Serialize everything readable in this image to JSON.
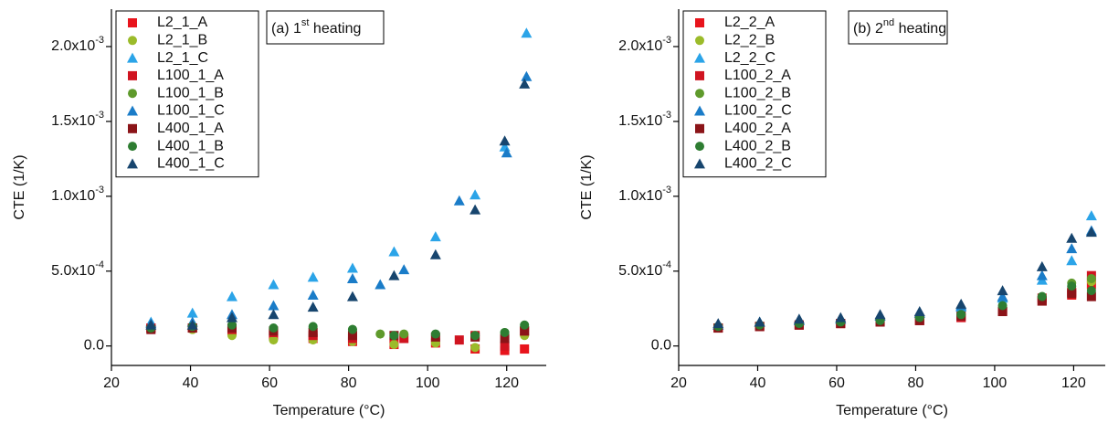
{
  "chart_data": [
    {
      "type": "scatter",
      "annotation": [
        "(a) 1",
        "st",
        " heating"
      ],
      "xlabel": "Temperature (°C)",
      "ylabel": "CTE (1/K)",
      "xlim": [
        20,
        130
      ],
      "ylim": [
        -0.00013,
        0.00225
      ],
      "xticks": [
        20,
        40,
        60,
        80,
        100,
        120
      ],
      "yticks": [
        {
          "value": 0,
          "label": "0.0"
        },
        {
          "value": 0.0005,
          "label": "5.0x10",
          "exponent": "-4"
        },
        {
          "value": 0.001,
          "label": "1.0x10",
          "exponent": "-3"
        },
        {
          "value": 0.0015,
          "label": "1.5x10",
          "exponent": "-3"
        },
        {
          "value": 0.002,
          "label": "2.0x10",
          "exponent": "-3"
        }
      ],
      "series": [
        {
          "name": "L2_1_A",
          "color": "#e8141c",
          "marker": "square",
          "x": [
            30,
            40.5,
            50.5,
            61,
            71,
            81,
            91.5,
            102,
            112,
            119.5,
            124.5
          ],
          "values": [
            0.00012,
            0.00012,
            0.0001,
            7e-05,
            5e-05,
            3e-05,
            1e-05,
            2e-05,
            -2e-05,
            -3e-05,
            -2e-05
          ]
        },
        {
          "name": "L2_1_B",
          "color": "#9bbb2a",
          "marker": "circle",
          "x": [
            30,
            40.5,
            50.5,
            61,
            71,
            81,
            91.5,
            102,
            112,
            119.5,
            124.5
          ],
          "values": [
            0.00012,
            0.00011,
            7e-05,
            4e-05,
            4e-05,
            3e-05,
            1e-05,
            2e-05,
            -1e-05,
            2e-05,
            7e-05
          ]
        },
        {
          "name": "L2_1_C",
          "color": "#2ba4e8",
          "marker": "triangle",
          "x": [
            30,
            40.5,
            50.5,
            61,
            71,
            81,
            91.5,
            102,
            112,
            119.5,
            125
          ],
          "values": [
            0.00016,
            0.00022,
            0.00033,
            0.00041,
            0.00046,
            0.00052,
            0.00063,
            0.00073,
            0.00101,
            0.00133,
            0.00209
          ]
        },
        {
          "name": "L100_1_A",
          "color": "#d01420",
          "marker": "square",
          "x": [
            30,
            40.5,
            50.5,
            61,
            71,
            81,
            94,
            108,
            112,
            119.5,
            124.5
          ],
          "values": [
            0.00012,
            0.00012,
            0.00011,
            9e-05,
            7e-05,
            5e-05,
            5e-05,
            4e-05,
            7e-05,
            0.0,
            0.0001
          ]
        },
        {
          "name": "L100_1_B",
          "color": "#5f9a2c",
          "marker": "circle",
          "x": [
            30,
            40.5,
            50.5,
            61,
            71,
            81,
            88,
            94,
            102,
            112,
            119.5,
            124.5
          ],
          "values": [
            0.00012,
            0.00012,
            0.00012,
            0.00011,
            0.00012,
            0.00011,
            8e-05,
            8e-05,
            7e-05,
            7e-05,
            9e-05,
            0.00013
          ]
        },
        {
          "name": "L100_1_C",
          "color": "#1a7cc8",
          "marker": "triangle",
          "x": [
            30,
            40.5,
            50.5,
            61,
            71,
            81,
            88,
            94,
            108,
            120,
            125
          ],
          "values": [
            0.00015,
            0.00016,
            0.00021,
            0.00027,
            0.00034,
            0.00045,
            0.00041,
            0.00051,
            0.00097,
            0.00129,
            0.0018
          ]
        },
        {
          "name": "L400_1_A",
          "color": "#8b1418",
          "marker": "square",
          "x": [
            30,
            40.5,
            50.5,
            61,
            71,
            81,
            91.5,
            102,
            112,
            119.5,
            124.5
          ],
          "values": [
            0.00011,
            0.00012,
            0.00012,
            0.0001,
            9e-05,
            7e-05,
            7e-05,
            6e-05,
            6e-05,
            5e-05,
            0.0001
          ]
        },
        {
          "name": "L400_1_B",
          "color": "#2e7d32",
          "marker": "circle",
          "x": [
            30,
            40.5,
            50.5,
            61,
            71,
            81,
            91.5,
            102,
            112,
            119.5,
            124.5
          ],
          "values": [
            0.00012,
            0.00013,
            0.00014,
            0.00012,
            0.00013,
            0.00011,
            7e-05,
            8e-05,
            7e-05,
            9e-05,
            0.00014
          ]
        },
        {
          "name": "L400_1_C",
          "color": "#17456e",
          "marker": "triangle",
          "x": [
            30,
            40.5,
            50.5,
            61,
            71,
            81,
            91.5,
            102,
            112,
            119.5,
            124.5
          ],
          "values": [
            0.00014,
            0.00014,
            0.00019,
            0.00021,
            0.00026,
            0.00033,
            0.00047,
            0.00061,
            0.00091,
            0.00137,
            0.00175
          ]
        }
      ]
    },
    {
      "type": "scatter",
      "annotation": [
        "(b) 2",
        "nd",
        " heating"
      ],
      "xlabel": "Temperature (°C)",
      "ylabel": "CTE (1/K)",
      "xlim": [
        20,
        128
      ],
      "ylim": [
        -0.00013,
        0.00225
      ],
      "xticks": [
        20,
        40,
        60,
        80,
        100,
        120
      ],
      "yticks": [
        {
          "value": 0,
          "label": "0.0"
        },
        {
          "value": 0.0005,
          "label": "5.0x10",
          "exponent": "-4"
        },
        {
          "value": 0.001,
          "label": "1.0x10",
          "exponent": "-3"
        },
        {
          "value": 0.0015,
          "label": "1.5x10",
          "exponent": "-3"
        },
        {
          "value": 0.002,
          "label": "2.0x10",
          "exponent": "-3"
        }
      ],
      "series": [
        {
          "name": "L2_2_A",
          "color": "#e8141c",
          "marker": "square",
          "x": [
            30,
            40.5,
            50.5,
            61,
            71,
            81,
            91.5,
            102,
            112,
            119.5,
            124.5
          ],
          "values": [
            0.00012,
            0.00013,
            0.00014,
            0.00015,
            0.00016,
            0.00017,
            0.00019,
            0.00023,
            0.0003,
            0.00034,
            0.00041
          ]
        },
        {
          "name": "L2_2_B",
          "color": "#9bbb2a",
          "marker": "circle",
          "x": [
            30,
            40.5,
            50.5,
            61,
            71,
            81,
            91.5,
            102,
            112,
            119.5,
            124.5
          ],
          "values": [
            0.00012,
            0.00013,
            0.00014,
            0.00015,
            0.00016,
            0.00018,
            0.0002,
            0.00025,
            0.00031,
            0.00038,
            0.00043
          ]
        },
        {
          "name": "L2_2_C",
          "color": "#2ba4e8",
          "marker": "triangle",
          "x": [
            30,
            40.5,
            50.5,
            61,
            71,
            81,
            91.5,
            102,
            112,
            119.5,
            124.5
          ],
          "values": [
            0.00014,
            0.00016,
            0.00017,
            0.00018,
            0.0002,
            0.00022,
            0.00026,
            0.00032,
            0.00044,
            0.00057,
            0.00087
          ]
        },
        {
          "name": "L100_2_A",
          "color": "#d01420",
          "marker": "square",
          "x": [
            30,
            40.5,
            50.5,
            61,
            71,
            81,
            91.5,
            102,
            112,
            119.5,
            124.5
          ],
          "values": [
            0.00012,
            0.00013,
            0.00014,
            0.00015,
            0.00016,
            0.00017,
            0.00019,
            0.00023,
            0.00032,
            0.00036,
            0.00047
          ]
        },
        {
          "name": "L100_2_B",
          "color": "#5f9a2c",
          "marker": "circle",
          "x": [
            30,
            40.5,
            50.5,
            61,
            71,
            81,
            91.5,
            102,
            112,
            119.5,
            124.5
          ],
          "values": [
            0.00013,
            0.00014,
            0.00015,
            0.00016,
            0.00017,
            0.00019,
            0.00021,
            0.00026,
            0.00033,
            0.00042,
            0.00045
          ]
        },
        {
          "name": "L100_2_C",
          "color": "#1a7cc8",
          "marker": "triangle",
          "x": [
            30,
            40.5,
            50.5,
            61,
            71,
            81,
            91.5,
            102,
            112,
            119.5,
            124.5
          ],
          "values": [
            0.00014,
            0.00016,
            0.00017,
            0.00018,
            0.0002,
            0.00022,
            0.00027,
            0.00033,
            0.00047,
            0.00065,
            0.00077
          ]
        },
        {
          "name": "L400_2_A",
          "color": "#8b1418",
          "marker": "square",
          "x": [
            30,
            40.5,
            50.5,
            61,
            71,
            81,
            91.5,
            102,
            112,
            119.5,
            124.5
          ],
          "values": [
            0.00012,
            0.00013,
            0.00014,
            0.00015,
            0.00016,
            0.00017,
            0.0002,
            0.00023,
            0.0003,
            0.00035,
            0.00033
          ]
        },
        {
          "name": "L400_2_B",
          "color": "#2e7d32",
          "marker": "circle",
          "x": [
            30,
            40.5,
            50.5,
            61,
            71,
            81,
            91.5,
            102,
            112,
            119.5,
            124.5
          ],
          "values": [
            0.00013,
            0.00014,
            0.00015,
            0.00016,
            0.00017,
            0.00019,
            0.00021,
            0.00027,
            0.00033,
            0.0004,
            0.00037
          ]
        },
        {
          "name": "L400_2_C",
          "color": "#17456e",
          "marker": "triangle",
          "x": [
            30,
            40.5,
            50.5,
            61,
            71,
            81,
            91.5,
            102,
            112,
            119.5,
            124.5
          ],
          "values": [
            0.00015,
            0.00016,
            0.00018,
            0.00019,
            0.00021,
            0.00023,
            0.00028,
            0.00037,
            0.00053,
            0.00072,
            0.00076
          ]
        }
      ]
    }
  ]
}
